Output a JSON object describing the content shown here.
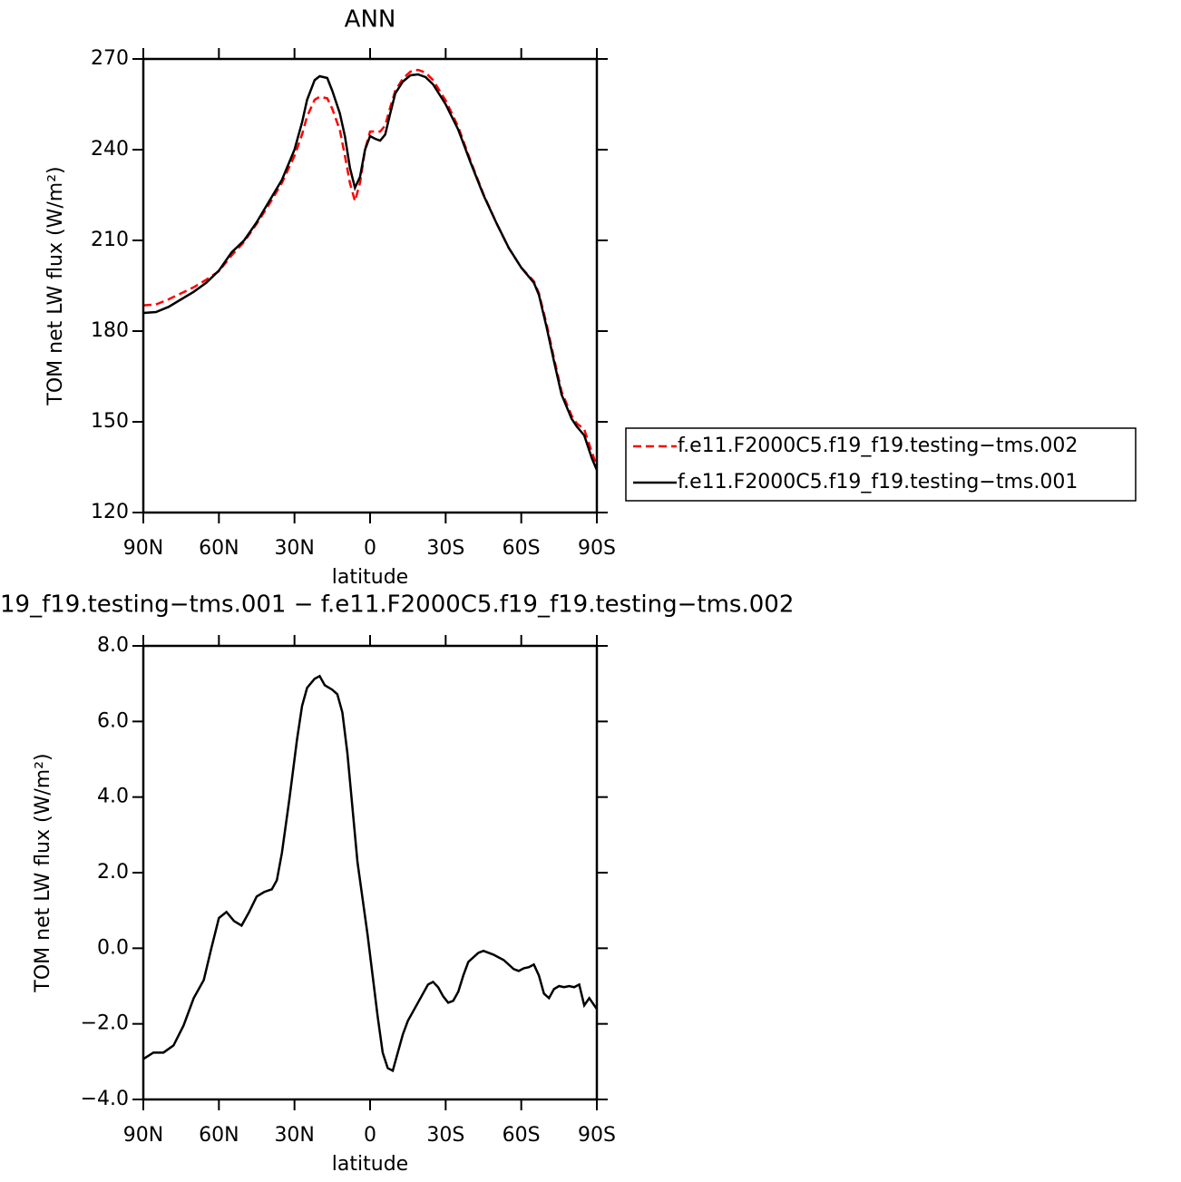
{
  "chart_data": [
    {
      "type": "line",
      "title": "ANN",
      "xlabel": "latitude",
      "ylabel": "TOM net LW flux (W/m²)",
      "x": [
        90,
        85,
        80,
        75,
        70,
        65,
        60,
        55,
        50,
        45,
        40,
        35,
        30,
        27,
        25,
        22,
        20,
        17,
        15,
        12,
        10,
        8,
        6,
        4,
        2,
        0,
        -2,
        -4,
        -6,
        -8,
        -10,
        -13,
        -16,
        -19,
        -22,
        -25,
        -30,
        -35,
        -40,
        -45,
        -50,
        -55,
        -60,
        -65,
        -67,
        -70,
        -73,
        -76,
        -80,
        -82,
        -85,
        -88,
        -90
      ],
      "series": [
        {
          "name": "f.e11.F2000C5.f19_f19.testing−tms.002",
          "color": "#ff0000",
          "dash": true,
          "values": [
            188.5,
            188.8,
            190.5,
            192.5,
            194.5,
            197,
            199.8,
            205,
            209.5,
            215.5,
            222,
            229,
            238,
            245,
            251,
            256.5,
            257.5,
            257,
            253.5,
            246.5,
            238,
            229,
            223,
            229,
            240,
            246,
            246,
            246,
            248,
            254,
            259.5,
            263.5,
            265.8,
            266.4,
            265.5,
            263,
            256.3,
            247.5,
            236,
            225.3,
            216,
            207.5,
            201,
            196.5,
            192.5,
            182.5,
            171,
            160,
            152,
            149.5,
            147.5,
            140,
            135.5
          ]
        },
        {
          "name": "f.e11.F2000C5.f19_f19.testing−tms.001",
          "color": "#000000",
          "dash": false,
          "values": [
            186,
            186.3,
            188,
            190.5,
            193,
            196,
            200,
            206,
            210,
            216,
            223,
            230,
            240,
            249,
            256.5,
            263,
            264.3,
            263.7,
            259.5,
            252,
            244.5,
            234,
            227.4,
            231,
            240,
            244.5,
            243.6,
            243,
            245,
            252,
            258.6,
            262.5,
            264.6,
            264.9,
            264,
            261.6,
            255,
            246.6,
            235.5,
            225,
            216,
            207.6,
            201,
            196,
            192,
            181.5,
            170,
            159,
            151,
            148.5,
            145.5,
            138,
            134
          ]
        }
      ],
      "xlim": [
        90,
        -90
      ],
      "xticks": [
        {
          "value": 90,
          "label": "90N"
        },
        {
          "value": 60,
          "label": "60N"
        },
        {
          "value": 30,
          "label": "30N"
        },
        0,
        {
          "value": -30,
          "label": "30S"
        },
        {
          "value": -60,
          "label": "60S"
        },
        {
          "value": -90,
          "label": "90S"
        }
      ],
      "ylim": [
        120,
        270
      ],
      "yticks": [
        120,
        150,
        180,
        210,
        240,
        270
      ],
      "legend": "right"
    },
    {
      "type": "line",
      "title": "19_f19.testing−tms.001 − f.e11.F2000C5.f19_f19.testing−tms.002",
      "xlabel": "latitude",
      "ylabel": "TOM net LW flux (W/m²)",
      "x": [
        90,
        86,
        82,
        78,
        74,
        70,
        66,
        63,
        60,
        57,
        54,
        51,
        48,
        45,
        42,
        39,
        37,
        35,
        32,
        29,
        27,
        25,
        22,
        20,
        18,
        15,
        13,
        11,
        9,
        7,
        5,
        3,
        1,
        -1,
        -3,
        -5,
        -7,
        -9,
        -11,
        -13,
        -15,
        -17,
        -19,
        -21,
        -23,
        -25,
        -27,
        -29,
        -31,
        -33,
        -35,
        -37,
        -39,
        -41,
        -43,
        -45,
        -47,
        -49,
        -51,
        -53,
        -55,
        -57,
        -59,
        -61,
        -63,
        -65,
        -67,
        -69,
        -71,
        -73,
        -75,
        -77,
        -79,
        -81,
        -83,
        -85,
        -87,
        -90
      ],
      "series": [
        {
          "color": "#000000",
          "dash": false,
          "values": [
            -2.93,
            -2.76,
            -2.76,
            -2.57,
            -2.04,
            -1.32,
            -0.84,
            0,
            0.8,
            0.96,
            0.72,
            0.6,
            0.96,
            1.37,
            1.49,
            1.56,
            1.8,
            2.52,
            3.96,
            5.52,
            6.41,
            6.89,
            7.13,
            7.2,
            6.96,
            6.84,
            6.72,
            6.24,
            5.16,
            3.72,
            2.28,
            1.32,
            0.36,
            -0.72,
            -1.8,
            -2.76,
            -3.17,
            -3.24,
            -2.76,
            -2.28,
            -1.92,
            -1.68,
            -1.44,
            -1.2,
            -0.96,
            -0.89,
            -1.03,
            -1.27,
            -1.44,
            -1.39,
            -1.15,
            -0.72,
            -0.36,
            -0.24,
            -0.12,
            -0.07,
            -0.12,
            -0.17,
            -0.24,
            -0.31,
            -0.43,
            -0.55,
            -0.6,
            -0.53,
            -0.5,
            -0.43,
            -0.72,
            -1.2,
            -1.32,
            -1.08,
            -1,
            -1.03,
            -1,
            -1.03,
            -0.96,
            -1.51,
            -1.32,
            -1.61
          ]
        }
      ],
      "xlim": [
        90,
        -90
      ],
      "xticks": [
        {
          "value": 90,
          "label": "90N"
        },
        {
          "value": 60,
          "label": "60N"
        },
        {
          "value": 30,
          "label": "30N"
        },
        0,
        {
          "value": -30,
          "label": "30S"
        },
        {
          "value": -60,
          "label": "60S"
        },
        {
          "value": -90,
          "label": "90S"
        }
      ],
      "ylim": [
        -4,
        8
      ],
      "yticks": [
        {
          "value": -4,
          "label": "−4.0"
        },
        {
          "value": -2,
          "label": "−2.0"
        },
        {
          "value": 0,
          "label": "0.0"
        },
        {
          "value": 2,
          "label": "2.0"
        },
        {
          "value": 4,
          "label": "4.0"
        },
        {
          "value": 6,
          "label": "6.0"
        },
        {
          "value": 8,
          "label": "8.0"
        }
      ]
    }
  ]
}
